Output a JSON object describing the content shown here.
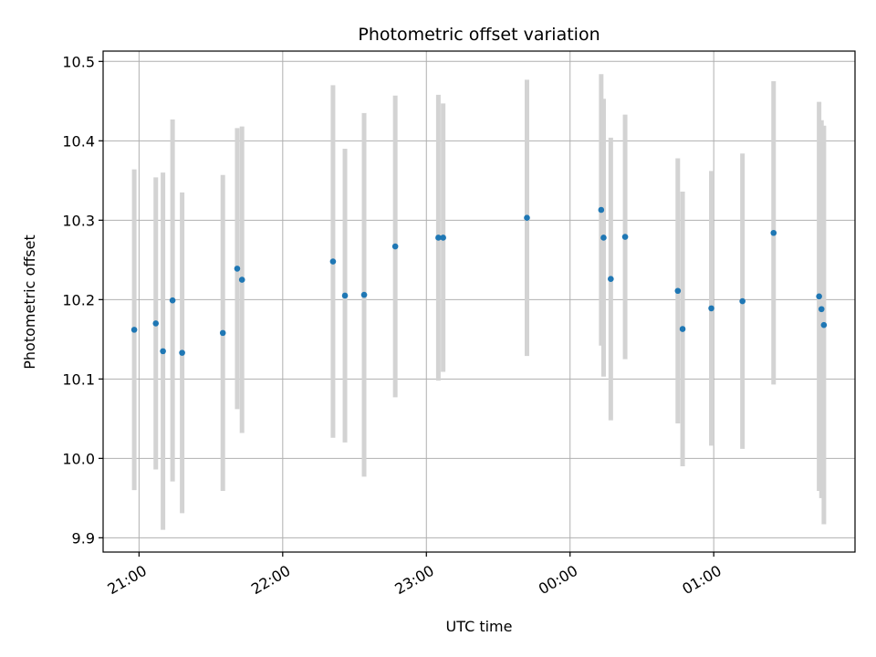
{
  "chart_data": {
    "type": "scatter",
    "title": "Photometric offset variation",
    "xlabel": "UTC time",
    "ylabel": "Photometric offset",
    "x_tick_labels": [
      "21:00",
      "22:00",
      "23:00",
      "00:00",
      "01:00"
    ],
    "y_tick_labels": [
      "9.9",
      "10.0",
      "10.1",
      "10.2",
      "10.3",
      "10.4",
      "10.5"
    ],
    "y_ticks": [
      9.9,
      10.0,
      10.1,
      10.2,
      10.3,
      10.4,
      10.5
    ],
    "x_ticks": [
      "20:59",
      "21:59",
      "22:59",
      "23:59",
      "00:59"
    ],
    "xlim": [
      "20:44",
      "25:58"
    ],
    "ylim": [
      9.882,
      10.513
    ],
    "grid": true,
    "legend": "none",
    "colors": {
      "point": "#1f77b4",
      "errorbar": "#d3d3d3",
      "grid": "#b0b0b0"
    },
    "points": [
      {
        "x": "20:57",
        "y": 10.162,
        "err": 0.202
      },
      {
        "x": "21:06",
        "y": 10.17,
        "err": 0.184
      },
      {
        "x": "21:09",
        "y": 10.135,
        "err": 0.225
      },
      {
        "x": "21:13",
        "y": 10.199,
        "err": 0.228
      },
      {
        "x": "21:17",
        "y": 10.133,
        "err": 0.202
      },
      {
        "x": "21:34",
        "y": 10.158,
        "err": 0.199
      },
      {
        "x": "21:40",
        "y": 10.239,
        "err": 0.177
      },
      {
        "x": "21:42",
        "y": 10.225,
        "err": 0.193
      },
      {
        "x": "22:20",
        "y": 10.248,
        "err": 0.222
      },
      {
        "x": "22:25",
        "y": 10.205,
        "err": 0.185
      },
      {
        "x": "22:33",
        "y": 10.206,
        "err": 0.229
      },
      {
        "x": "22:46",
        "y": 10.267,
        "err": 0.19
      },
      {
        "x": "23:04",
        "y": 10.278,
        "err": 0.18
      },
      {
        "x": "23:06",
        "y": 10.278,
        "err": 0.169
      },
      {
        "x": "23:41",
        "y": 10.303,
        "err": 0.174
      },
      {
        "x": "00:12",
        "y": 10.313,
        "err": 0.171
      },
      {
        "x": "00:13",
        "y": 10.278,
        "err": 0.175
      },
      {
        "x": "00:16",
        "y": 10.226,
        "err": 0.178
      },
      {
        "x": "00:22",
        "y": 10.279,
        "err": 0.154
      },
      {
        "x": "00:44",
        "y": 10.211,
        "err": 0.167
      },
      {
        "x": "00:46",
        "y": 10.163,
        "err": 0.173
      },
      {
        "x": "00:58",
        "y": 10.189,
        "err": 0.173
      },
      {
        "x": "01:11",
        "y": 10.198,
        "err": 0.186
      },
      {
        "x": "01:24",
        "y": 10.284,
        "err": 0.191
      },
      {
        "x": "01:43",
        "y": 10.204,
        "err": 0.245
      },
      {
        "x": "01:44",
        "y": 10.188,
        "err": 0.238
      },
      {
        "x": "01:45",
        "y": 10.168,
        "err": 0.251
      }
    ]
  }
}
